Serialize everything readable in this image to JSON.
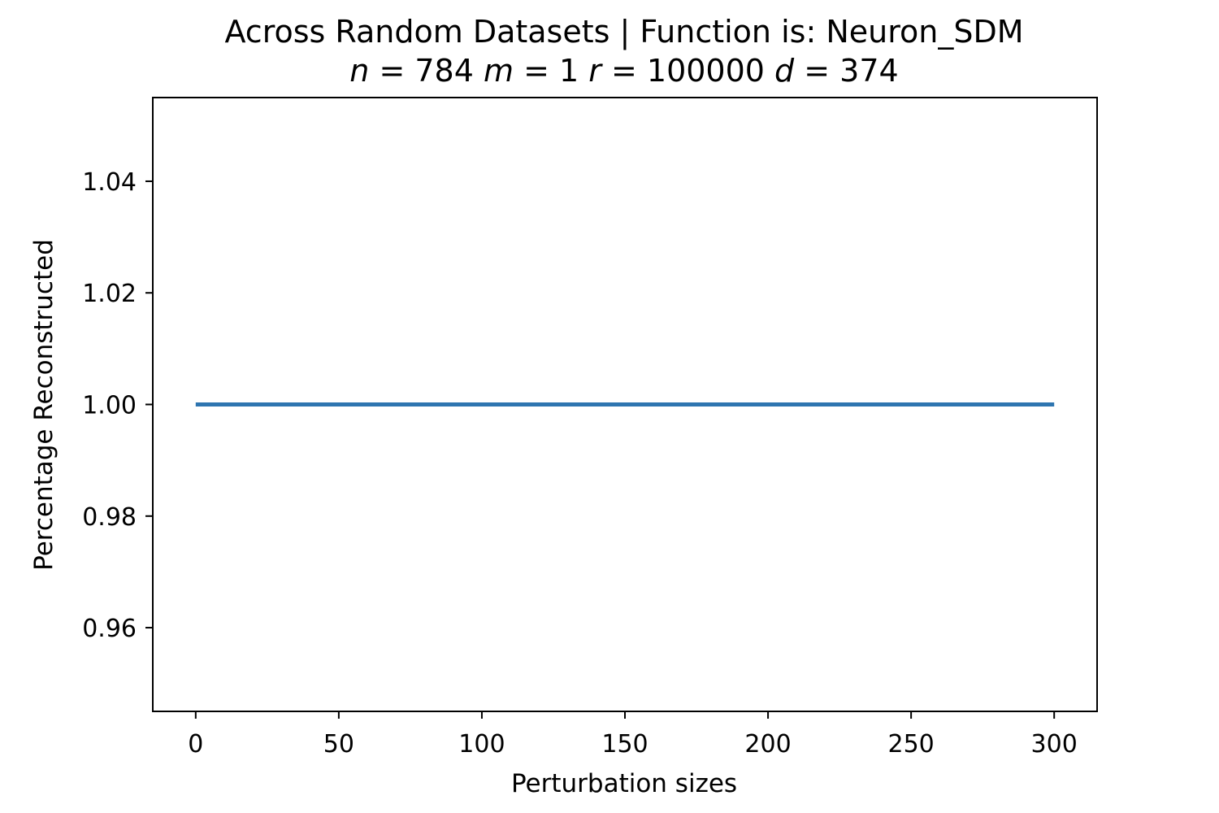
{
  "chart_data": {
    "type": "line",
    "title": "Across Random Datasets | Function is: Neuron_SDM",
    "subtitle_params": [
      {
        "name": "n",
        "value": "784"
      },
      {
        "name": "m",
        "value": "1"
      },
      {
        "name": "r",
        "value": "100000"
      },
      {
        "name": "d",
        "value": "374"
      }
    ],
    "xlabel": "Perturbation sizes",
    "ylabel": "Percentage Reconstructed",
    "xlim": [
      -15,
      315
    ],
    "ylim": [
      0.945,
      1.055
    ],
    "xticks": [
      0,
      50,
      100,
      150,
      200,
      250,
      300
    ],
    "yticks": [
      0.96,
      0.98,
      1.0,
      1.02,
      1.04
    ],
    "xtick_labels": [
      "0",
      "50",
      "100",
      "150",
      "200",
      "250",
      "300"
    ],
    "ytick_labels": [
      "0.96",
      "0.98",
      "1.00",
      "1.02",
      "1.04"
    ],
    "grid": false,
    "series": [
      {
        "color": "#2e75b0",
        "x": [
          0,
          50,
          100,
          150,
          200,
          250,
          300
        ],
        "y": [
          1.0,
          1.0,
          1.0,
          1.0,
          1.0,
          1.0,
          1.0
        ]
      }
    ]
  }
}
